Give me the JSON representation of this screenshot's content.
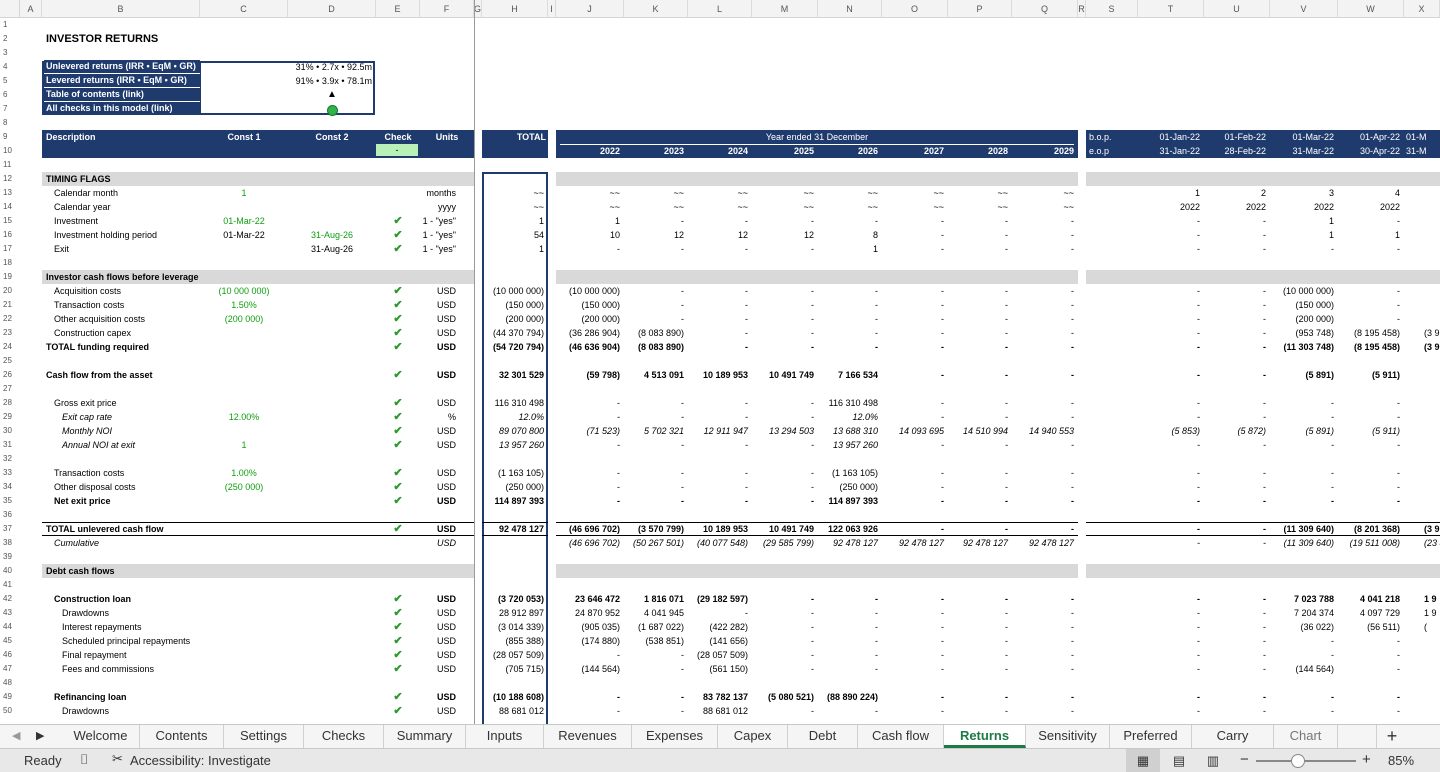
{
  "columns": [
    {
      "l": "A",
      "x": 20,
      "w": 22
    },
    {
      "l": "B",
      "x": 42,
      "w": 158
    },
    {
      "l": "C",
      "x": 200,
      "w": 88
    },
    {
      "l": "D",
      "x": 288,
      "w": 88
    },
    {
      "l": "E",
      "x": 376,
      "w": 44
    },
    {
      "l": "F",
      "x": 420,
      "w": 54
    },
    {
      "l": "G",
      "x": 474,
      "w": 8
    },
    {
      "l": "H",
      "x": 482,
      "w": 66
    },
    {
      "l": "I",
      "x": 548,
      "w": 8
    },
    {
      "l": "J",
      "x": 556,
      "w": 68
    },
    {
      "l": "K",
      "x": 624,
      "w": 64
    },
    {
      "l": "L",
      "x": 688,
      "w": 64
    },
    {
      "l": "M",
      "x": 752,
      "w": 66
    },
    {
      "l": "N",
      "x": 818,
      "w": 64
    },
    {
      "l": "O",
      "x": 882,
      "w": 66
    },
    {
      "l": "P",
      "x": 948,
      "w": 64
    },
    {
      "l": "Q",
      "x": 1012,
      "w": 66
    },
    {
      "l": "R",
      "x": 1078,
      "w": 8
    },
    {
      "l": "S",
      "x": 1086,
      "w": 52
    },
    {
      "l": "T",
      "x": 1138,
      "w": 66
    },
    {
      "l": "U",
      "x": 1204,
      "w": 66
    },
    {
      "l": "V",
      "x": 1270,
      "w": 68
    },
    {
      "l": "W",
      "x": 1338,
      "w": 66
    },
    {
      "l": "X",
      "x": 1404,
      "w": 36
    }
  ],
  "sheet_title": "INVESTOR RETURNS",
  "summary": {
    "unlevered_label": "Unlevered returns (IRR • EqM • GR)",
    "unlevered_value": "31% • 2.7x • 92.5m",
    "levered_label": "Levered returns (IRR • EqM • GR)",
    "levered_value": "91% • 3.9x • 78.1m",
    "toc_label": "Table of contents (link)",
    "toc_glyph": "▲",
    "checks_label": "All checks in this model (link)"
  },
  "header": {
    "description": "Description",
    "const1": "Const 1",
    "const2": "Const 2",
    "check": "Check",
    "check_value": "-",
    "units": "Units",
    "total": "TOTAL",
    "year_ended": "Year ended 31 December",
    "years": [
      "2022",
      "2023",
      "2024",
      "2025",
      "2026",
      "2027",
      "2028",
      "2029"
    ],
    "bop": "b.o.p.",
    "eop": "e.o.p",
    "month_start": [
      "01-Jan-22",
      "01-Feb-22",
      "01-Mar-22",
      "01-Apr-22",
      "01-M"
    ],
    "month_end": [
      "31-Jan-22",
      "28-Feb-22",
      "31-Mar-22",
      "30-Apr-22",
      "31-M"
    ]
  },
  "rows": [
    {
      "n": "1"
    },
    {
      "n": "2"
    },
    {
      "n": "3"
    },
    {
      "n": "4"
    },
    {
      "n": "5"
    },
    {
      "n": "6"
    },
    {
      "n": "7"
    },
    {
      "n": "8"
    },
    {
      "n": "9"
    },
    {
      "n": "10"
    },
    {
      "n": "11"
    },
    {
      "n": "12",
      "label": "TIMING FLAGS",
      "bold": true,
      "grey": true
    },
    {
      "n": "13",
      "label": "Calendar month",
      "indent": 1,
      "c1": "1",
      "c1g": true,
      "units": "months",
      "total": "~~",
      "years": [
        "~~",
        "~~",
        "~~",
        "~~",
        "~~",
        "~~",
        "~~",
        "~~"
      ],
      "months": [
        "1",
        "2",
        "3",
        "4",
        ""
      ]
    },
    {
      "n": "14",
      "label": "Calendar year",
      "indent": 1,
      "units": "yyyy",
      "total": "~~",
      "years": [
        "~~",
        "~~",
        "~~",
        "~~",
        "~~",
        "~~",
        "~~",
        "~~"
      ],
      "months": [
        "2022",
        "2022",
        "2022",
        "2022",
        ""
      ]
    },
    {
      "n": "15",
      "label": "Investment",
      "indent": 1,
      "c1": "01-Mar-22",
      "c1g": true,
      "check": true,
      "units": "1 - \"yes\"",
      "total": "1",
      "years": [
        "1",
        "-",
        "-",
        "-",
        "-",
        "-",
        "-",
        "-"
      ],
      "months": [
        "-",
        "-",
        "1",
        "-",
        ""
      ]
    },
    {
      "n": "16",
      "label": "Investment holding period",
      "indent": 1,
      "c1": "01-Mar-22",
      "c2": "31-Aug-26",
      "c2g": true,
      "check": true,
      "units": "1 - \"yes\"",
      "total": "54",
      "years": [
        "10",
        "12",
        "12",
        "12",
        "8",
        "-",
        "-",
        "-"
      ],
      "months": [
        "-",
        "-",
        "1",
        "1",
        ""
      ]
    },
    {
      "n": "17",
      "label": "Exit",
      "indent": 1,
      "c2": "31-Aug-26",
      "check": true,
      "units": "1 - \"yes\"",
      "total": "1",
      "years": [
        "-",
        "-",
        "-",
        "-",
        "1",
        "-",
        "-",
        "-"
      ],
      "months": [
        "-",
        "-",
        "-",
        "-",
        ""
      ]
    },
    {
      "n": "18"
    },
    {
      "n": "19",
      "label": "Investor cash flows before leverage",
      "bold": true,
      "grey": true
    },
    {
      "n": "20",
      "label": "Acquisition costs",
      "indent": 1,
      "c1": "(10 000 000)",
      "c1g": true,
      "check": true,
      "units": "USD",
      "total": "(10 000 000)",
      "years": [
        "(10 000 000)",
        "-",
        "-",
        "-",
        "-",
        "-",
        "-",
        "-"
      ],
      "months": [
        "-",
        "-",
        "(10 000 000)",
        "-",
        ""
      ]
    },
    {
      "n": "21",
      "label": "Transaction costs",
      "indent": 1,
      "c1": "1.50%",
      "c1g": true,
      "check": true,
      "units": "USD",
      "total": "(150 000)",
      "years": [
        "(150 000)",
        "-",
        "-",
        "-",
        "-",
        "-",
        "-",
        "-"
      ],
      "months": [
        "-",
        "-",
        "(150 000)",
        "-",
        ""
      ]
    },
    {
      "n": "22",
      "label": "Other acquisition costs",
      "indent": 1,
      "c1": "(200 000)",
      "c1g": true,
      "check": true,
      "units": "USD",
      "total": "(200 000)",
      "years": [
        "(200 000)",
        "-",
        "-",
        "-",
        "-",
        "-",
        "-",
        "-"
      ],
      "months": [
        "-",
        "-",
        "(200 000)",
        "-",
        ""
      ]
    },
    {
      "n": "23",
      "label": "Construction capex",
      "indent": 1,
      "check": true,
      "units": "USD",
      "total": "(44 370 794)",
      "years": [
        "(36 286 904)",
        "(8 083 890)",
        "-",
        "-",
        "-",
        "-",
        "-",
        "-"
      ],
      "months": [
        "-",
        "-",
        "(953 748)",
        "(8 195 458)",
        "(3 9"
      ]
    },
    {
      "n": "24",
      "label": "TOTAL funding required",
      "bold": true,
      "check": true,
      "units": "USD",
      "total": "(54 720 794)",
      "years": [
        "(46 636 904)",
        "(8 083 890)",
        "-",
        "-",
        "-",
        "-",
        "-",
        "-"
      ],
      "months": [
        "-",
        "-",
        "(11 303 748)",
        "(8 195 458)",
        "(3 9"
      ]
    },
    {
      "n": "25"
    },
    {
      "n": "26",
      "label": "Cash flow from the asset",
      "bold": true,
      "check": true,
      "units": "USD",
      "total": "32 301 529",
      "years": [
        "(59 798)",
        "4 513 091",
        "10 189 953",
        "10 491 749",
        "7 166 534",
        "-",
        "-",
        "-"
      ],
      "months": [
        "-",
        "-",
        "(5 891)",
        "(5 911)",
        ""
      ]
    },
    {
      "n": "27"
    },
    {
      "n": "28",
      "label": "Gross exit price",
      "indent": 1,
      "check": true,
      "units": "USD",
      "total": "116 310 498",
      "years": [
        "-",
        "-",
        "-",
        "-",
        "116 310 498",
        "-",
        "-",
        "-"
      ],
      "months": [
        "-",
        "-",
        "-",
        "-",
        ""
      ]
    },
    {
      "n": "29",
      "label": "Exit cap rate",
      "indent": 2,
      "italic": true,
      "c1": "12.00%",
      "c1g": true,
      "check": true,
      "units": "%",
      "total": "12.0%",
      "years": [
        "-",
        "-",
        "-",
        "-",
        "12.0%",
        "-",
        "-",
        "-"
      ],
      "months": [
        "-",
        "-",
        "-",
        "-",
        ""
      ]
    },
    {
      "n": "30",
      "label": "Monthly NOI",
      "indent": 2,
      "italic": true,
      "check": true,
      "units": "USD",
      "total": "89 070 800",
      "years": [
        "(71 523)",
        "5 702 321",
        "12 911 947",
        "13 294 503",
        "13 688 310",
        "14 093 695",
        "14 510 994",
        "14 940 553"
      ],
      "months": [
        "(5 853)",
        "(5 872)",
        "(5 891)",
        "(5 911)",
        ""
      ]
    },
    {
      "n": "31",
      "label": "Annual NOI at exit",
      "indent": 2,
      "italic": true,
      "c1": "1",
      "c1g": true,
      "check": true,
      "units": "USD",
      "total": "13 957 260",
      "years": [
        "-",
        "-",
        "-",
        "-",
        "13 957 260",
        "-",
        "-",
        "-"
      ],
      "months": [
        "-",
        "-",
        "-",
        "-",
        ""
      ]
    },
    {
      "n": "32"
    },
    {
      "n": "33",
      "label": "Transaction costs",
      "indent": 1,
      "c1": "1.00%",
      "c1g": true,
      "check": true,
      "units": "USD",
      "total": "(1 163 105)",
      "years": [
        "-",
        "-",
        "-",
        "-",
        "(1 163 105)",
        "-",
        "-",
        "-"
      ],
      "months": [
        "-",
        "-",
        "-",
        "-",
        ""
      ]
    },
    {
      "n": "34",
      "label": "Other disposal costs",
      "indent": 1,
      "c1": "(250 000)",
      "c1g": true,
      "check": true,
      "units": "USD",
      "total": "(250 000)",
      "years": [
        "-",
        "-",
        "-",
        "-",
        "(250 000)",
        "-",
        "-",
        "-"
      ],
      "months": [
        "-",
        "-",
        "-",
        "-",
        ""
      ]
    },
    {
      "n": "35",
      "label": "Net exit price",
      "indent": 1,
      "bold": true,
      "check": true,
      "units": "USD",
      "total": "114 897 393",
      "years": [
        "-",
        "-",
        "-",
        "-",
        "114 897 393",
        "-",
        "-",
        "-"
      ],
      "months": [
        "-",
        "-",
        "-",
        "-",
        ""
      ]
    },
    {
      "n": "36"
    },
    {
      "n": "37",
      "label": "TOTAL unlevered cash flow",
      "bold": true,
      "check": true,
      "units": "USD",
      "total": "92 478 127",
      "total_line": true,
      "years": [
        "(46 696 702)",
        "(3 570 799)",
        "10 189 953",
        "10 491 749",
        "122 063 926",
        "-",
        "-",
        "-"
      ],
      "months": [
        "-",
        "-",
        "(11 309 640)",
        "(8 201 368)",
        "(3 9"
      ]
    },
    {
      "n": "38",
      "label": "Cumulative",
      "indent": 1,
      "italic": true,
      "units": "USD",
      "units_italic": true,
      "years": [
        "(46 696 702)",
        "(50 267 501)",
        "(40 077 548)",
        "(29 585 799)",
        "92 478 127",
        "92 478 127",
        "92 478 127",
        "92 478 127"
      ],
      "months": [
        "-",
        "-",
        "(11 309 640)",
        "(19 511 008)",
        "(23 4"
      ]
    },
    {
      "n": "39"
    },
    {
      "n": "40",
      "label": "Debt cash flows",
      "bold": true,
      "grey": true
    },
    {
      "n": "41"
    },
    {
      "n": "42",
      "label": "Construction loan",
      "indent": 1,
      "bold": true,
      "check": true,
      "units": "USD",
      "total": "(3 720 053)",
      "years": [
        "23 646 472",
        "1 816 071",
        "(29 182 597)",
        "-",
        "-",
        "-",
        "-",
        "-"
      ],
      "months": [
        "-",
        "-",
        "7 023 788",
        "4 041 218",
        "1 9"
      ]
    },
    {
      "n": "43",
      "label": "Drawdowns",
      "indent": 2,
      "check": true,
      "units": "USD",
      "total": "28 912 897",
      "years": [
        "24 870 952",
        "4 041 945",
        "-",
        "-",
        "-",
        "-",
        "-",
        "-"
      ],
      "months": [
        "-",
        "-",
        "7 204 374",
        "4 097 729",
        "1 9"
      ]
    },
    {
      "n": "44",
      "label": "Interest repayments",
      "indent": 2,
      "check": true,
      "units": "USD",
      "total": "(3 014 339)",
      "years": [
        "(905 035)",
        "(1 687 022)",
        "(422 282)",
        "-",
        "-",
        "-",
        "-",
        "-"
      ],
      "months": [
        "-",
        "-",
        "(36 022)",
        "(56 511)",
        "("
      ]
    },
    {
      "n": "45",
      "label": "Scheduled principal repayments",
      "indent": 2,
      "check": true,
      "units": "USD",
      "total": "(855 388)",
      "years": [
        "(174 880)",
        "(538 851)",
        "(141 656)",
        "-",
        "-",
        "-",
        "-",
        "-"
      ],
      "months": [
        "-",
        "-",
        "-",
        "-",
        ""
      ]
    },
    {
      "n": "46",
      "label": "Final repayment",
      "indent": 2,
      "check": true,
      "units": "USD",
      "total": "(28 057 509)",
      "years": [
        "-",
        "-",
        "(28 057 509)",
        "-",
        "-",
        "-",
        "-",
        "-"
      ],
      "months": [
        "-",
        "-",
        "-",
        "-",
        ""
      ]
    },
    {
      "n": "47",
      "label": "Fees and commissions",
      "indent": 2,
      "check": true,
      "units": "USD",
      "total": "(705 715)",
      "years": [
        "(144 564)",
        "-",
        "(561 150)",
        "-",
        "-",
        "-",
        "-",
        "-"
      ],
      "months": [
        "-",
        "-",
        "(144 564)",
        "-",
        ""
      ]
    },
    {
      "n": "48"
    },
    {
      "n": "49",
      "label": "Refinancing loan",
      "indent": 1,
      "bold": true,
      "check": true,
      "units": "USD",
      "total": "(10 188 608)",
      "years": [
        "-",
        "-",
        "83 782 137",
        "(5 080 521)",
        "(88 890 224)",
        "-",
        "-",
        "-"
      ],
      "months": [
        "-",
        "-",
        "-",
        "-",
        ""
      ]
    },
    {
      "n": "50",
      "label": "Drawdowns",
      "indent": 2,
      "check": true,
      "units": "USD",
      "total": "88 681 012",
      "years": [
        "-",
        "-",
        "88 681 012",
        "-",
        "-",
        "-",
        "-",
        "-"
      ],
      "months": [
        "-",
        "-",
        "-",
        "-",
        ""
      ]
    }
  ],
  "tabs": [
    "Welcome",
    "Contents",
    "Settings",
    "Checks",
    "Summary",
    "Inputs",
    "Revenues",
    "Expenses",
    "Capex",
    "Debt",
    "Cash flow",
    "Returns",
    "Sensitivity",
    "Preferred",
    "Carry",
    "Chart"
  ],
  "active_tab": "Returns",
  "status": {
    "ready": "Ready",
    "accessibility": "Accessibility: Investigate",
    "zoom": "85%"
  },
  "colors": {
    "navy": "#1f3b6e",
    "green": "#10a010",
    "accent": "#1e7a45"
  }
}
